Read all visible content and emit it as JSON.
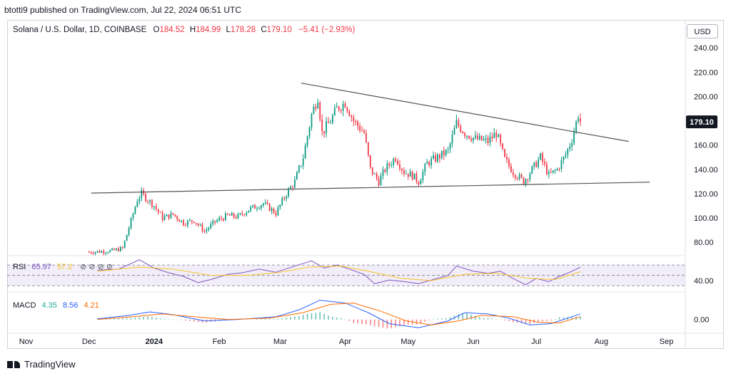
{
  "header": {
    "publisher_line": "btotti9 published on TradingView.com, Jul 22, 2024 06:51 UTC"
  },
  "footer": {
    "brand": "TradingView"
  },
  "currency_button": "USD",
  "chart_data": [
    {
      "type": "candlestick",
      "symbol_line": {
        "symbol": "Solana / U.S. Dollar, 1D, COINBASE",
        "o_label": "O",
        "o": "184.52",
        "h_label": "H",
        "h": "184.99",
        "l_label": "L",
        "l": "178.28",
        "c_label": "C",
        "c": "179.10",
        "change": "−5.41 (−2.93%)"
      },
      "last_price_label": "179.10",
      "y_ticks": [
        "240.00",
        "220.00",
        "200.00",
        "180.00",
        "160.00",
        "140.00",
        "120.00",
        "100.00",
        "80.00"
      ],
      "y_tick_values": [
        240,
        220,
        200,
        180,
        160,
        140,
        120,
        100,
        80
      ],
      "ylim": [
        69,
        263
      ],
      "x_tick_labels": [
        "Nov",
        "Dec",
        "2024",
        "Feb",
        "Mar",
        "Apr",
        "May",
        "Jun",
        "Jul",
        "Aug",
        "Sep"
      ],
      "x_tick_dates": [
        "2023-11-01",
        "2023-12-01",
        "2024-01-01",
        "2024-02-01",
        "2024-03-01",
        "2024-04-01",
        "2024-05-01",
        "2024-06-01",
        "2024-07-01",
        "2024-08-01",
        "2024-09-01"
      ],
      "xlim": [
        "2023-10-23",
        "2024-09-10"
      ],
      "price_path": [
        [
          "2023-12-01",
          72
        ],
        [
          "2023-12-12",
          73
        ],
        [
          "2023-12-17",
          75
        ],
        [
          "2023-12-20",
          92
        ],
        [
          "2023-12-24",
          115
        ],
        [
          "2023-12-26",
          120
        ],
        [
          "2024-01-01",
          110
        ],
        [
          "2024-01-05",
          100
        ],
        [
          "2024-01-10",
          103
        ],
        [
          "2024-01-15",
          96
        ],
        [
          "2024-01-20",
          98
        ],
        [
          "2024-01-25",
          89
        ],
        [
          "2024-01-30",
          97
        ],
        [
          "2024-02-05",
          102
        ],
        [
          "2024-02-10",
          101
        ],
        [
          "2024-02-15",
          107
        ],
        [
          "2024-02-22",
          112
        ],
        [
          "2024-02-28",
          104
        ],
        [
          "2024-03-04",
          120
        ],
        [
          "2024-03-08",
          130
        ],
        [
          "2024-03-12",
          150
        ],
        [
          "2024-03-16",
          185
        ],
        [
          "2024-03-19",
          200
        ],
        [
          "2024-03-21",
          170
        ],
        [
          "2024-03-25",
          180
        ],
        [
          "2024-03-28",
          190
        ],
        [
          "2024-04-01",
          195
        ],
        [
          "2024-04-05",
          180
        ],
        [
          "2024-04-10",
          170
        ],
        [
          "2024-04-13",
          140
        ],
        [
          "2024-04-17",
          130
        ],
        [
          "2024-04-20",
          140
        ],
        [
          "2024-04-25",
          150
        ],
        [
          "2024-04-29",
          138
        ],
        [
          "2024-05-03",
          135
        ],
        [
          "2024-05-06",
          130
        ],
        [
          "2024-05-10",
          145
        ],
        [
          "2024-05-15",
          150
        ],
        [
          "2024-05-20",
          155
        ],
        [
          "2024-05-24",
          178
        ],
        [
          "2024-05-28",
          170
        ],
        [
          "2024-06-02",
          165
        ],
        [
          "2024-06-08",
          163
        ],
        [
          "2024-06-12",
          170
        ],
        [
          "2024-06-16",
          148
        ],
        [
          "2024-06-20",
          138
        ],
        [
          "2024-06-25",
          130
        ],
        [
          "2024-06-29",
          140
        ],
        [
          "2024-07-03",
          150
        ],
        [
          "2024-07-07",
          135
        ],
        [
          "2024-07-11",
          140
        ],
        [
          "2024-07-15",
          152
        ],
        [
          "2024-07-18",
          165
        ],
        [
          "2024-07-21",
          185
        ],
        [
          "2024-07-22",
          179
        ]
      ],
      "trendlines": [
        {
          "name": "descending-resistance",
          "from": [
            "2024-03-11",
            211
          ],
          "to": [
            "2024-08-14",
            163
          ]
        },
        {
          "name": "ascending-support",
          "from": [
            "2023-12-02",
            120.5
          ],
          "to": [
            "2024-08-24",
            129.5
          ]
        }
      ]
    },
    {
      "type": "line",
      "name": "RSI",
      "label": "RSI",
      "values_shown": [
        "65.97",
        "57.2"
      ],
      "y_ticks": [
        "40.00"
      ],
      "y_tick_values": [
        40
      ],
      "ylim": [
        18,
        88
      ],
      "band": [
        30,
        70
      ],
      "rsi_path": [
        [
          "2023-12-05",
          60
        ],
        [
          "2023-12-15",
          62
        ],
        [
          "2023-12-25",
          80
        ],
        [
          "2024-01-01",
          64
        ],
        [
          "2024-01-08",
          55
        ],
        [
          "2024-01-15",
          48
        ],
        [
          "2024-01-22",
          36
        ],
        [
          "2024-01-28",
          42
        ],
        [
          "2024-02-05",
          52
        ],
        [
          "2024-02-12",
          55
        ],
        [
          "2024-02-20",
          62
        ],
        [
          "2024-02-28",
          56
        ],
        [
          "2024-03-08",
          68
        ],
        [
          "2024-03-16",
          78
        ],
        [
          "2024-03-22",
          64
        ],
        [
          "2024-03-28",
          70
        ],
        [
          "2024-04-03",
          62
        ],
        [
          "2024-04-10",
          52
        ],
        [
          "2024-04-15",
          34
        ],
        [
          "2024-04-22",
          41
        ],
        [
          "2024-04-29",
          38
        ],
        [
          "2024-05-06",
          34
        ],
        [
          "2024-05-13",
          42
        ],
        [
          "2024-05-20",
          50
        ],
        [
          "2024-05-24",
          68
        ],
        [
          "2024-06-01",
          58
        ],
        [
          "2024-06-08",
          54
        ],
        [
          "2024-06-14",
          58
        ],
        [
          "2024-06-20",
          44
        ],
        [
          "2024-06-26",
          32
        ],
        [
          "2024-07-01",
          44
        ],
        [
          "2024-07-07",
          38
        ],
        [
          "2024-07-12",
          48
        ],
        [
          "2024-07-17",
          56
        ],
        [
          "2024-07-22",
          66
        ]
      ],
      "ma_path": [
        [
          "2023-12-05",
          58
        ],
        [
          "2023-12-25",
          66
        ],
        [
          "2024-01-10",
          62
        ],
        [
          "2024-01-28",
          50
        ],
        [
          "2024-02-15",
          50
        ],
        [
          "2024-03-01",
          56
        ],
        [
          "2024-03-15",
          66
        ],
        [
          "2024-03-30",
          68
        ],
        [
          "2024-04-12",
          58
        ],
        [
          "2024-04-28",
          44
        ],
        [
          "2024-05-12",
          40
        ],
        [
          "2024-05-28",
          52
        ],
        [
          "2024-06-12",
          54
        ],
        [
          "2024-06-28",
          44
        ],
        [
          "2024-07-10",
          42
        ],
        [
          "2024-07-22",
          57
        ]
      ]
    },
    {
      "type": "histogram",
      "name": "MACD",
      "label": "MACD",
      "values_shown": [
        "4.35",
        "8.56",
        "4.21"
      ],
      "y_ticks": [
        "0.00"
      ],
      "y_tick_values": [
        0
      ],
      "ylim": [
        -20,
        40
      ],
      "macd_path": [
        [
          "2023-12-05",
          1
        ],
        [
          "2023-12-20",
          6
        ],
        [
          "2023-12-30",
          11
        ],
        [
          "2024-01-10",
          7
        ],
        [
          "2024-01-25",
          -2
        ],
        [
          "2024-02-10",
          0
        ],
        [
          "2024-02-28",
          4
        ],
        [
          "2024-03-10",
          14
        ],
        [
          "2024-03-20",
          28
        ],
        [
          "2024-04-01",
          24
        ],
        [
          "2024-04-12",
          10
        ],
        [
          "2024-04-22",
          -6
        ],
        [
          "2024-05-06",
          -12
        ],
        [
          "2024-05-20",
          -2
        ],
        [
          "2024-05-28",
          10
        ],
        [
          "2024-06-08",
          8
        ],
        [
          "2024-06-18",
          2
        ],
        [
          "2024-06-28",
          -8
        ],
        [
          "2024-07-08",
          -6
        ],
        [
          "2024-07-22",
          8
        ]
      ],
      "signal_path": [
        [
          "2023-12-05",
          0
        ],
        [
          "2023-12-25",
          5
        ],
        [
          "2024-01-05",
          8
        ],
        [
          "2024-01-20",
          4
        ],
        [
          "2024-02-05",
          0
        ],
        [
          "2024-02-25",
          2
        ],
        [
          "2024-03-12",
          10
        ],
        [
          "2024-03-25",
          22
        ],
        [
          "2024-04-05",
          24
        ],
        [
          "2024-04-18",
          12
        ],
        [
          "2024-04-30",
          -2
        ],
        [
          "2024-05-12",
          -8
        ],
        [
          "2024-05-25",
          -2
        ],
        [
          "2024-06-05",
          6
        ],
        [
          "2024-06-20",
          4
        ],
        [
          "2024-07-02",
          -4
        ],
        [
          "2024-07-12",
          -5
        ],
        [
          "2024-07-22",
          4
        ]
      ]
    }
  ]
}
